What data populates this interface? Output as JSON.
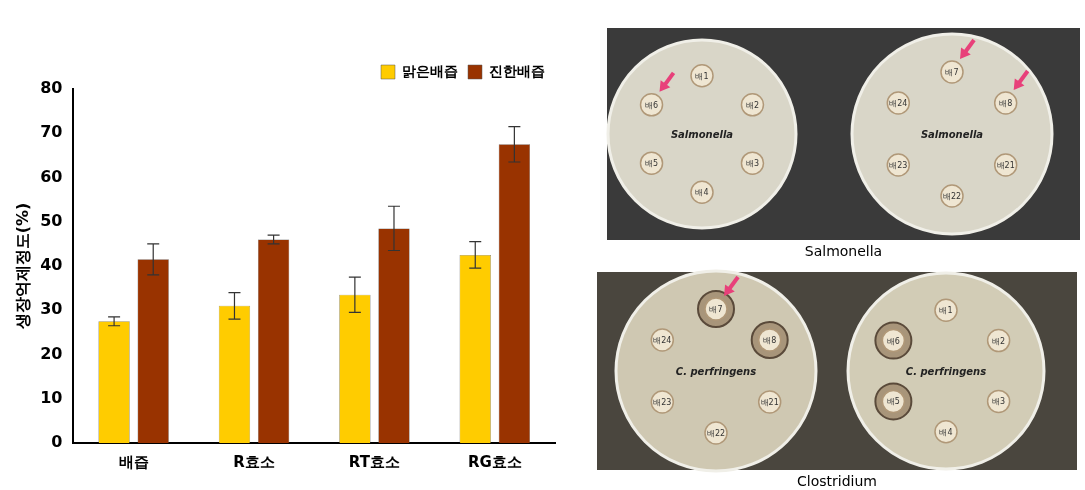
{
  "chart_data": {
    "type": "bar",
    "y_label": "생장억제정도(%)",
    "categories": [
      "배즙",
      "R효소",
      "RT효소",
      "RG효소"
    ],
    "series": [
      {
        "name": "맑은배즙",
        "color": "#ffcc00",
        "values": [
          27.5,
          31,
          33.5,
          42.5
        ],
        "errors": [
          1,
          3,
          4,
          3
        ]
      },
      {
        "name": "진한배즙",
        "color": "#993300",
        "values": [
          41.5,
          46,
          48.5,
          67.5
        ],
        "errors": [
          3.5,
          1,
          5,
          4
        ]
      }
    ],
    "ylim": [
      0,
      80
    ],
    "yticks": [
      0,
      10,
      20,
      30,
      40,
      50,
      60,
      70,
      80
    ],
    "grid": false,
    "legend": "top"
  },
  "photos": [
    {
      "caption": "Salmonella",
      "plates": [
        {
          "label": "Salmonella",
          "discs": [
            "배1",
            "배2",
            "배3",
            "배4",
            "배5",
            "배6"
          ],
          "arrows": [
            "배6"
          ],
          "halo": []
        },
        {
          "label": "Salmonella",
          "discs": [
            "배7",
            "배8",
            "배21",
            "배22",
            "배23",
            "배24"
          ],
          "arrows": [
            "배7",
            "배8"
          ],
          "halo": []
        }
      ]
    },
    {
      "caption": "Clostridium",
      "plates": [
        {
          "label": "C. perfringens",
          "discs": [
            "배7",
            "배8",
            "배21",
            "배22",
            "배23",
            "배24"
          ],
          "arrows": [
            "배7"
          ],
          "halo": [
            "배7",
            "배8"
          ]
        },
        {
          "label": "C. perfringens",
          "discs": [
            "배1",
            "배2",
            "배3",
            "배4",
            "배5",
            "배6"
          ],
          "arrows": [],
          "halo": [
            "배5",
            "배6"
          ]
        }
      ]
    }
  ]
}
